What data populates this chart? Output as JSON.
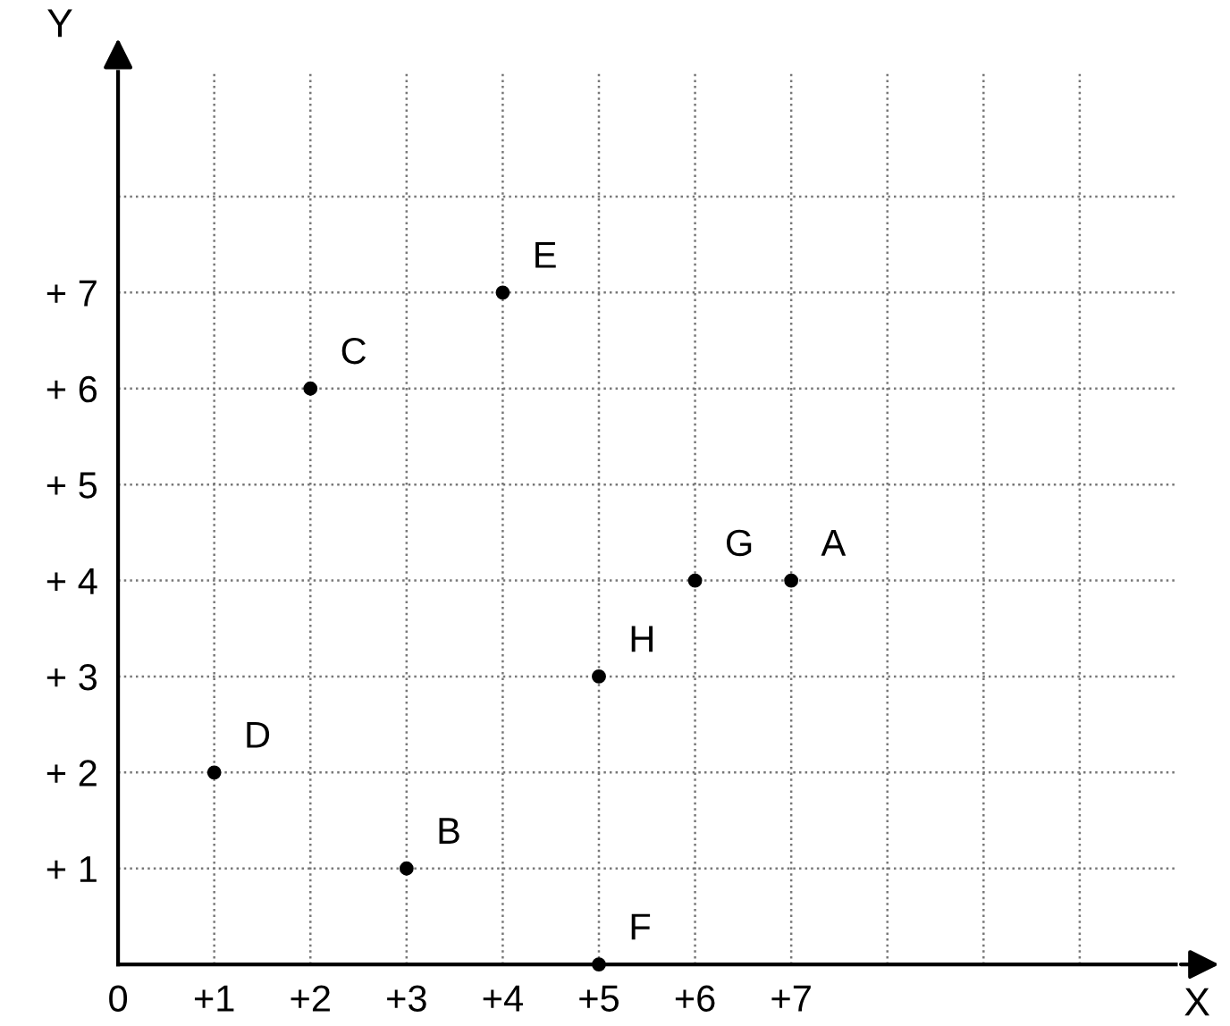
{
  "chart_data": {
    "type": "scatter",
    "xlabel": "X",
    "ylabel": "Y",
    "x": [
      7,
      3,
      2,
      1,
      4,
      5,
      6,
      5
    ],
    "values": [
      4,
      1,
      6,
      2,
      7,
      0,
      4,
      3
    ],
    "color": "#000000",
    "marker": "circle",
    "annotations": [
      {
        "text": "A",
        "x": 7,
        "y": 4
      },
      {
        "text": "B",
        "x": 3,
        "y": 1
      },
      {
        "text": "C",
        "x": 2,
        "y": 6
      },
      {
        "text": "D",
        "x": 1,
        "y": 2
      },
      {
        "text": "E",
        "x": 4,
        "y": 7
      },
      {
        "text": "F",
        "x": 5,
        "y": 0
      },
      {
        "text": "G",
        "x": 6,
        "y": 4
      },
      {
        "text": "H",
        "x": 5,
        "y": 3
      }
    ],
    "xlim": [
      0,
      11
    ],
    "ylim": [
      0,
      9.3
    ],
    "xticks": [
      {
        "value": 0,
        "label": "0"
      },
      {
        "value": 1,
        "label": "+1"
      },
      {
        "value": 2,
        "label": "+2"
      },
      {
        "value": 3,
        "label": "+3"
      },
      {
        "value": 4,
        "label": "+4"
      },
      {
        "value": 5,
        "label": "+5"
      },
      {
        "value": 6,
        "label": "+6"
      },
      {
        "value": 7,
        "label": "+7"
      },
      {
        "value": 8,
        "label": null
      },
      {
        "value": 9,
        "label": null
      },
      {
        "value": 10,
        "label": null
      }
    ],
    "yticks": [
      {
        "value": 1,
        "label": "+ 1"
      },
      {
        "value": 2,
        "label": "+ 2"
      },
      {
        "value": 3,
        "label": "+ 3"
      },
      {
        "value": 4,
        "label": "+ 4"
      },
      {
        "value": 5,
        "label": "+ 5"
      },
      {
        "value": 6,
        "label": "+ 6"
      },
      {
        "value": 7,
        "label": "+ 7"
      },
      {
        "value": 8,
        "label": null
      }
    ],
    "grid": true,
    "line_style": "dotted"
  }
}
